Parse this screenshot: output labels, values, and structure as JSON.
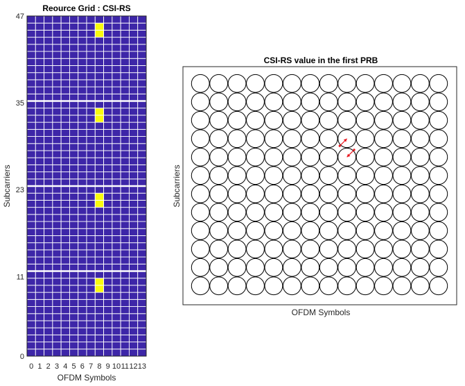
{
  "figure": {
    "background": "#ffffff"
  },
  "chart_data": [
    {
      "type": "heatmap",
      "title": "Reource Grid : CSI-RS",
      "xlabel": "OFDM Symbols",
      "ylabel": "Subcarriers",
      "x_ticks": [
        "0",
        "1",
        "2",
        "3",
        "4",
        "5",
        "6",
        "7",
        "8",
        "9",
        "10",
        "11",
        "12",
        "13"
      ],
      "y_ticks": [
        "0",
        "11",
        "23",
        "35",
        "47"
      ],
      "xlim": [
        0,
        13
      ],
      "ylim": [
        0,
        47
      ],
      "n_symbols": 14,
      "n_subcarriers": 48,
      "prb_size": 12,
      "colors": {
        "empty": "#3d26a8",
        "csi_rs": "#f9fb0e",
        "grid_line": "#ffffff"
      },
      "csi_rs_cells": [
        {
          "symbol": 8,
          "subcarrier": 9
        },
        {
          "symbol": 8,
          "subcarrier": 10
        },
        {
          "symbol": 8,
          "subcarrier": 21
        },
        {
          "symbol": 8,
          "subcarrier": 22
        },
        {
          "symbol": 8,
          "subcarrier": 33
        },
        {
          "symbol": 8,
          "subcarrier": 34
        },
        {
          "symbol": 8,
          "subcarrier": 45
        },
        {
          "symbol": 8,
          "subcarrier": 46
        }
      ]
    },
    {
      "type": "scatter",
      "title": "CSI-RS value in the first PRB",
      "xlabel": "OFDM Symbols",
      "ylabel": "Subcarriers",
      "n_columns": 14,
      "n_rows": 12,
      "circle_color": "#000000",
      "arrow_color": "#e8141c",
      "arrows": [
        {
          "column": 8,
          "row": 3,
          "dx": -0.5,
          "dy": 0.5
        },
        {
          "column": 8,
          "row": 4,
          "dx": 0.5,
          "dy": -0.5
        }
      ]
    }
  ]
}
